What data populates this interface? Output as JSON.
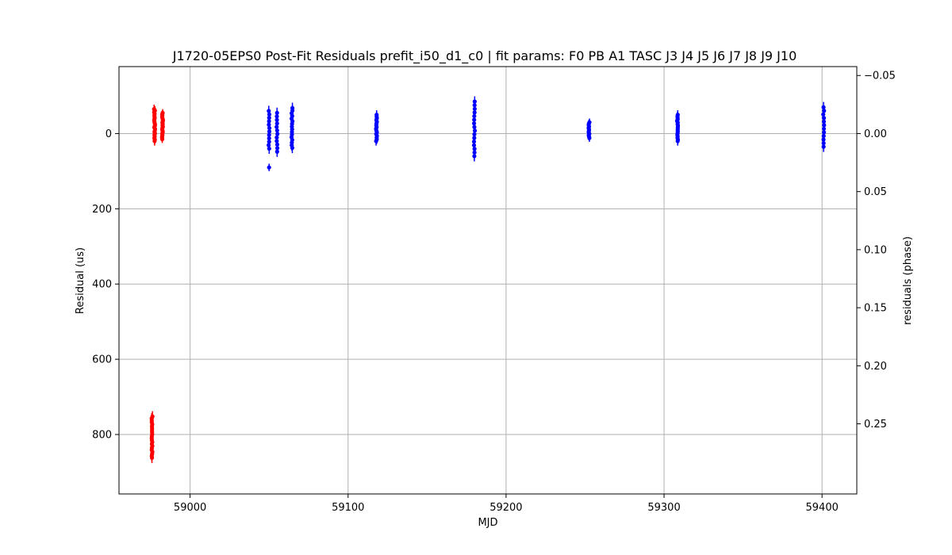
{
  "chart_data": {
    "type": "scatter",
    "title": "J1720-05EPS0 Post-Fit Residuals prefit_i50_d1_c0 | fit params: F0 PB A1 TASC J3 J4 J5 J6 J7 J8 J9 J10",
    "xlabel": "MJD",
    "ylabel": "Residual (us)",
    "y2label": "residuals (phase)",
    "xlim": [
      58955,
      59422
    ],
    "ylim": [
      958,
      -178
    ],
    "y_inverted": true,
    "grid": true,
    "x_ticks": [
      59000,
      59100,
      59200,
      59300,
      59400
    ],
    "x_tick_labels": [
      "59000",
      "59100",
      "59200",
      "59300",
      "59400"
    ],
    "y_ticks": [
      0,
      200,
      400,
      600,
      800
    ],
    "y_tick_labels": [
      "0",
      "200",
      "400",
      "600",
      "800"
    ],
    "y2_ticks": [
      -0.05,
      0.0,
      0.05,
      0.1,
      0.15,
      0.2,
      0.25
    ],
    "y2_tick_labels": [
      "−0.05",
      "0.00",
      "0.05",
      "0.10",
      "0.15",
      "0.20",
      "0.25"
    ],
    "y2_per_y1": 0.000324,
    "series": [
      {
        "color": "#ff0000",
        "clusters": [
          {
            "x": 58977.5,
            "y_from": -65,
            "y_to": 20,
            "n": 22,
            "err": 12
          },
          {
            "x": 58982.5,
            "y_from": -55,
            "y_to": 15,
            "n": 20,
            "err": 10
          },
          {
            "x": 58976.0,
            "y_from": 752,
            "y_to": 862,
            "n": 22,
            "err": 14
          }
        ]
      },
      {
        "color": "#0000ff",
        "clusters": [
          {
            "x": 59050.0,
            "y_from": -60,
            "y_to": 40,
            "n": 12,
            "err": 14
          },
          {
            "x": 59055.0,
            "y_from": -55,
            "y_to": 48,
            "n": 12,
            "err": 14
          },
          {
            "x": 59064.5,
            "y_from": -68,
            "y_to": 38,
            "n": 16,
            "err": 14
          },
          {
            "x": 59118.0,
            "y_from": -50,
            "y_to": 20,
            "n": 16,
            "err": 12
          },
          {
            "x": 59180.0,
            "y_from": -85,
            "y_to": 60,
            "n": 16,
            "err": 14
          },
          {
            "x": 59252.5,
            "y_from": -30,
            "y_to": 12,
            "n": 12,
            "err": 10
          },
          {
            "x": 59308.5,
            "y_from": -50,
            "y_to": 20,
            "n": 18,
            "err": 12
          },
          {
            "x": 59401.0,
            "y_from": -70,
            "y_to": 35,
            "n": 12,
            "err": 14
          }
        ],
        "points": [
          {
            "x": 59050.0,
            "y": 90,
            "err": 10
          }
        ]
      }
    ]
  }
}
